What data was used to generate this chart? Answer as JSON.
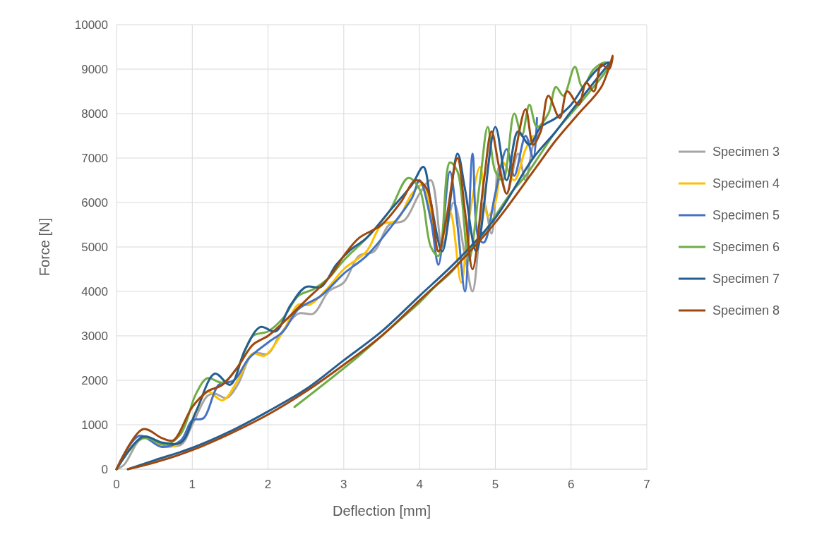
{
  "chart_data": {
    "type": "line",
    "xlabel": "Deflection [mm]",
    "ylabel": "Force [N]",
    "xlim": [
      0,
      7
    ],
    "xticks": [
      0,
      1,
      2,
      3,
      4,
      5,
      6,
      7
    ],
    "ylim": [
      0,
      10000
    ],
    "yticks": [
      0,
      1000,
      2000,
      3000,
      4000,
      5000,
      6000,
      7000,
      8000,
      9000,
      10000
    ],
    "grid": true,
    "legend": "right",
    "marker": "none",
    "line_style": "solid",
    "series": [
      {
        "name": "Specimen 3",
        "color": "#a5a5a5",
        "x": [
          0,
          0.1,
          0.3,
          0.4,
          0.6,
          0.85,
          1.0,
          1.2,
          1.3,
          1.45,
          1.6,
          1.8,
          2.0,
          2.15,
          2.4,
          2.6,
          2.8,
          3.0,
          3.2,
          3.4,
          3.6,
          3.8,
          4.0,
          4.15,
          4.3,
          4.45,
          4.6,
          4.7,
          4.85,
          4.95,
          5.05,
          5.15,
          5.3,
          5.4,
          5.5,
          5.6
        ],
        "values": [
          0,
          100,
          650,
          700,
          550,
          550,
          1000,
          1650,
          1700,
          1600,
          1900,
          2600,
          2600,
          3000,
          3500,
          3500,
          4000,
          4200,
          4800,
          4900,
          5500,
          5600,
          6200,
          6500,
          5000,
          6000,
          4800,
          4000,
          6000,
          5300,
          6800,
          6200,
          7100,
          6500,
          7300,
          7600
        ]
      },
      {
        "name": "Specimen 4",
        "color": "#ffc000",
        "x": [
          0,
          0.35,
          0.65,
          0.85,
          1.05,
          1.2,
          1.4,
          1.6,
          1.8,
          1.95,
          2.2,
          2.4,
          2.55,
          2.8,
          3.0,
          3.3,
          3.5,
          3.7,
          3.9,
          4.05,
          4.25,
          4.4,
          4.55,
          4.65,
          4.8,
          4.9,
          5.0,
          5.1,
          5.25,
          5.4,
          5.5
        ],
        "values": [
          0,
          700,
          500,
          600,
          1300,
          1750,
          1550,
          2000,
          2600,
          2550,
          3100,
          3700,
          3700,
          4100,
          4500,
          4900,
          5500,
          5600,
          6200,
          6400,
          4900,
          5800,
          4200,
          5600,
          6800,
          5700,
          6000,
          6900,
          6500,
          7200,
          7500
        ]
      },
      {
        "name": "Specimen 5",
        "color": "#4472c4",
        "x": [
          0,
          0.3,
          0.6,
          0.85,
          1.0,
          1.15,
          1.35,
          1.55,
          1.75,
          2.0,
          2.2,
          2.4,
          2.7,
          3.0,
          3.3,
          3.6,
          3.9,
          4.0,
          4.15,
          4.25,
          4.4,
          4.5,
          4.6,
          4.7,
          4.78,
          4.85,
          5.0,
          5.15,
          5.25,
          5.4,
          5.5,
          5.55
        ],
        "values": [
          0,
          750,
          500,
          650,
          1100,
          1150,
          1900,
          2000,
          2500,
          2850,
          3100,
          3600,
          3900,
          4400,
          4800,
          5400,
          6100,
          6500,
          5600,
          4600,
          6700,
          5500,
          4000,
          7100,
          5200,
          5100,
          6200,
          7200,
          6600,
          7500,
          7000,
          7900
        ]
      },
      {
        "name": "Specimen 6",
        "color": "#70ad47",
        "x": [
          0,
          0.35,
          0.65,
          0.85,
          1.05,
          1.2,
          1.4,
          1.6,
          1.8,
          2.0,
          2.2,
          2.4,
          2.6,
          2.8,
          3.0,
          3.3,
          3.6,
          3.85,
          4.0,
          4.15,
          4.25,
          4.4,
          4.5,
          4.65,
          4.8,
          4.9,
          5.0,
          5.1,
          5.25,
          5.35,
          5.45,
          5.55,
          5.7,
          5.8,
          5.9,
          6.05,
          6.15,
          6.3,
          6.45,
          6.5,
          6.2,
          6.0,
          5.8,
          5.6,
          5.4,
          5.2,
          5.0,
          4.8,
          4.6,
          4.4,
          4.2,
          4.0,
          3.6,
          3.2,
          2.8,
          2.35
        ],
        "values": [
          0,
          700,
          550,
          800,
          1700,
          2050,
          1950,
          2300,
          3000,
          3100,
          3400,
          3900,
          4050,
          4300,
          4700,
          5200,
          5800,
          6550,
          6300,
          5000,
          4800,
          6900,
          6700,
          4700,
          6500,
          7700,
          6700,
          6500,
          8000,
          7500,
          8200,
          7700,
          8000,
          8600,
          8400,
          9050,
          8600,
          9000,
          9150,
          9100,
          8400,
          8000,
          7600,
          7100,
          6600,
          6200,
          5700,
          5200,
          4800,
          4400,
          4100,
          3750,
          3150,
          2550,
          2000,
          1400
        ]
      },
      {
        "name": "Specimen 7",
        "color": "#255e91",
        "x": [
          0,
          0.35,
          0.6,
          0.85,
          1.05,
          1.3,
          1.5,
          1.7,
          1.9,
          2.1,
          2.3,
          2.5,
          2.7,
          2.9,
          3.1,
          3.3,
          3.6,
          3.9,
          4.05,
          4.15,
          4.3,
          4.5,
          4.6,
          4.75,
          5.0,
          5.15,
          5.3,
          5.45,
          5.6,
          5.8,
          6.0,
          6.2,
          6.35,
          6.5,
          6.3,
          6.0,
          5.8,
          5.5,
          5.0,
          4.5,
          4.0,
          3.5,
          3.0,
          2.5,
          2.0,
          1.5,
          1.0,
          0.5,
          0.15
        ],
        "values": [
          0,
          730,
          600,
          600,
          1300,
          2150,
          1900,
          2700,
          3200,
          3100,
          3700,
          4100,
          4100,
          4600,
          4950,
          5200,
          5800,
          6400,
          6800,
          6000,
          4900,
          7100,
          6300,
          4900,
          7700,
          6500,
          7600,
          7300,
          7700,
          7900,
          8200,
          8700,
          9000,
          9150,
          8700,
          8050,
          7600,
          7000,
          5650,
          4700,
          3900,
          3100,
          2450,
          1800,
          1300,
          850,
          480,
          200,
          0
        ]
      },
      {
        "name": "Specimen 8",
        "color": "#9e480e",
        "x": [
          0,
          0.35,
          0.6,
          0.75,
          1.0,
          1.2,
          1.4,
          1.6,
          1.8,
          2.0,
          2.2,
          2.5,
          2.8,
          3.0,
          3.2,
          3.5,
          3.75,
          3.95,
          4.1,
          4.25,
          4.35,
          4.5,
          4.6,
          4.7,
          4.85,
          4.95,
          5.05,
          5.15,
          5.25,
          5.4,
          5.5,
          5.6,
          5.7,
          5.85,
          5.95,
          6.1,
          6.2,
          6.3,
          6.4,
          6.5,
          6.55,
          6.4,
          6.1,
          5.8,
          5.5,
          5.0,
          4.5,
          4.0,
          3.5,
          3.0,
          2.5,
          2.0,
          1.5,
          1.0,
          0.5,
          0.15
        ],
        "values": [
          0,
          900,
          700,
          650,
          1400,
          1750,
          1900,
          2300,
          2800,
          3000,
          3300,
          3800,
          4300,
          4800,
          5200,
          5500,
          6000,
          6500,
          6300,
          4900,
          5600,
          7000,
          5800,
          4500,
          6500,
          7600,
          6800,
          6200,
          7000,
          8100,
          7300,
          7600,
          8400,
          7900,
          8500,
          8200,
          8700,
          8500,
          9100,
          9000,
          9300,
          8600,
          8000,
          7400,
          6700,
          5550,
          4600,
          3800,
          3000,
          2350,
          1750,
          1230,
          800,
          430,
          150,
          0
        ]
      }
    ]
  }
}
